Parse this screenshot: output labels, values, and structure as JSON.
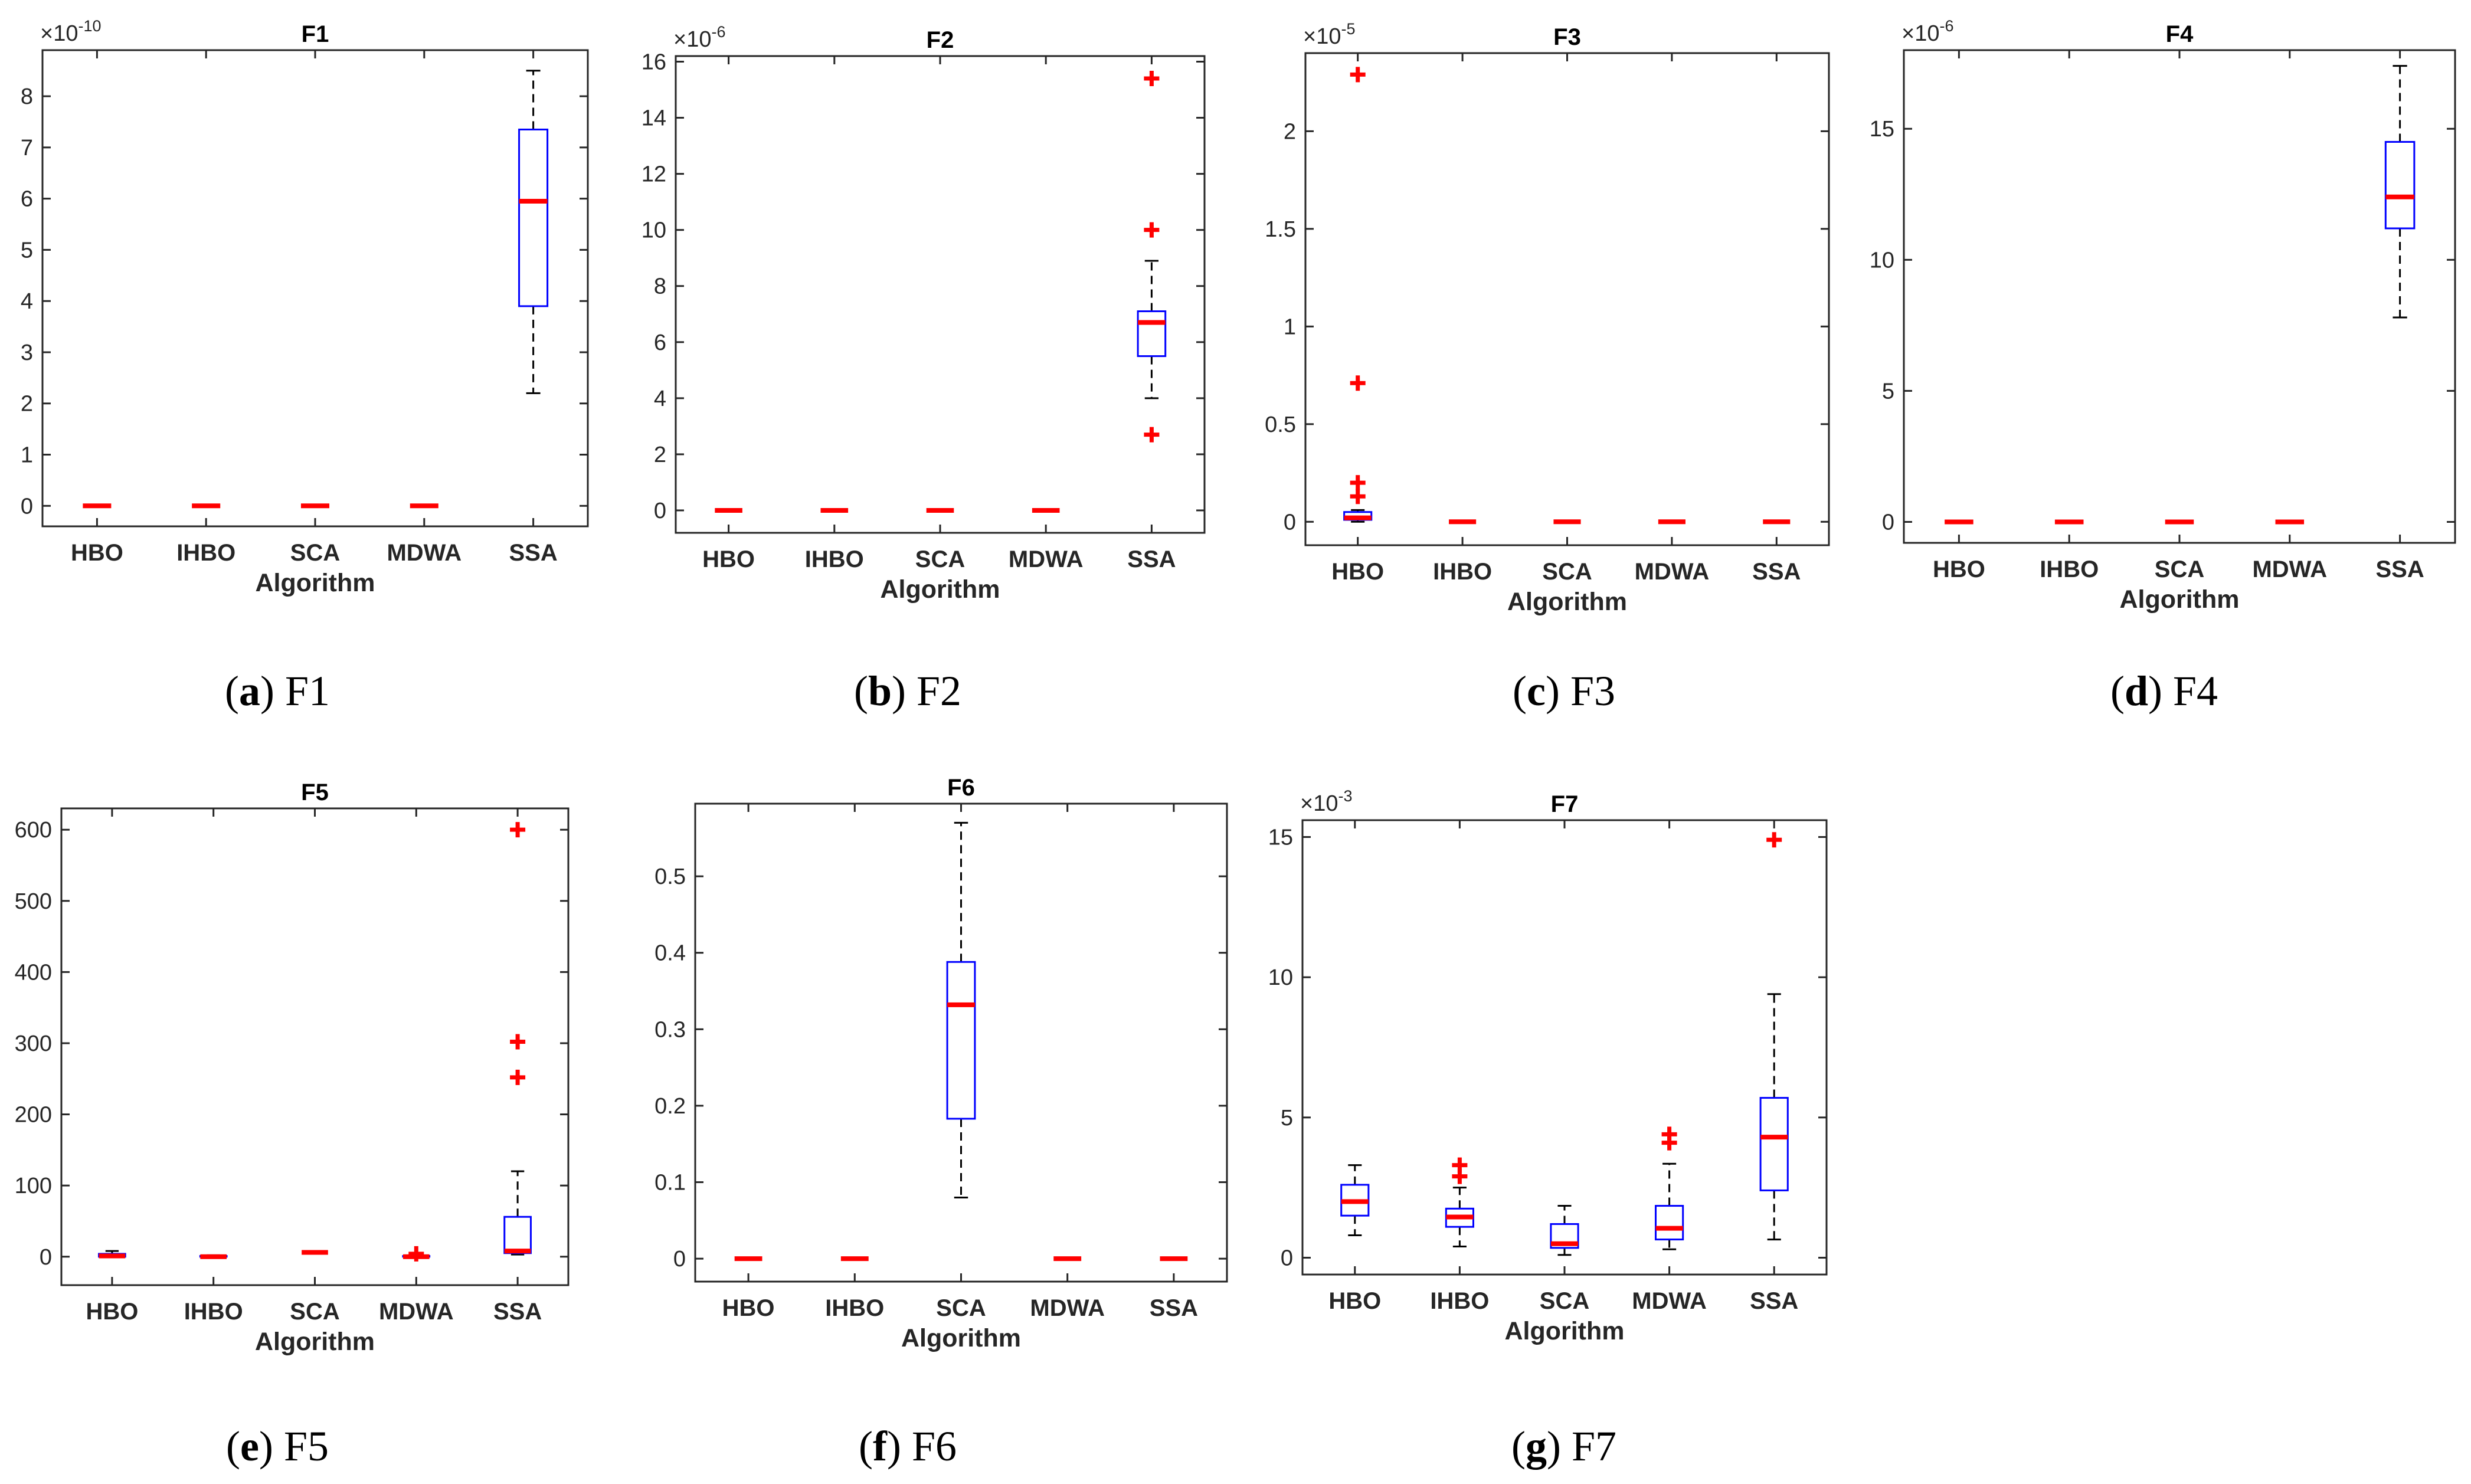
{
  "chart_data": [
    {
      "type": "boxplot",
      "title": "F1",
      "xlabel": "Algorithm",
      "ylabel": "",
      "exponent": "-10",
      "ylim": [
        -0.4,
        8.9
      ],
      "yticks": [
        "0",
        "1",
        "2",
        "3",
        "4",
        "5",
        "6",
        "7",
        "8"
      ],
      "ytick_values": [
        0,
        1,
        2,
        3,
        4,
        5,
        6,
        7,
        8
      ],
      "categories": [
        "HBO",
        "IHBO",
        "SCA",
        "MDWA",
        "SSA"
      ],
      "boxes": [
        {
          "min": 0,
          "q1": 0,
          "median": 0,
          "q3": 0,
          "max": 0,
          "outliers": []
        },
        {
          "min": 0,
          "q1": 0,
          "median": 0,
          "q3": 0,
          "max": 0,
          "outliers": []
        },
        {
          "min": 0,
          "q1": 0,
          "median": 0,
          "q3": 0,
          "max": 0,
          "outliers": []
        },
        {
          "min": 0,
          "q1": 0,
          "median": 0,
          "q3": 0,
          "max": 0,
          "outliers": []
        },
        {
          "min": 2.2,
          "q1": 3.9,
          "median": 5.95,
          "q3": 7.35,
          "max": 8.5,
          "outliers": []
        }
      ],
      "caption_letter": "a",
      "caption_text": " F1"
    },
    {
      "type": "boxplot",
      "title": "F2",
      "xlabel": "Algorithm",
      "ylabel": "",
      "exponent": "-6",
      "ylim": [
        -0.8,
        16.2
      ],
      "yticks": [
        "0",
        "2",
        "4",
        "6",
        "8",
        "10",
        "12",
        "14",
        "16"
      ],
      "ytick_values": [
        0,
        2,
        4,
        6,
        8,
        10,
        12,
        14,
        16
      ],
      "categories": [
        "HBO",
        "IHBO",
        "SCA",
        "MDWA",
        "SSA"
      ],
      "boxes": [
        {
          "min": 0,
          "q1": 0,
          "median": 0,
          "q3": 0,
          "max": 0,
          "outliers": []
        },
        {
          "min": 0,
          "q1": 0,
          "median": 0,
          "q3": 0,
          "max": 0,
          "outliers": []
        },
        {
          "min": 0,
          "q1": 0,
          "median": 0,
          "q3": 0,
          "max": 0,
          "outliers": []
        },
        {
          "min": 0,
          "q1": 0,
          "median": 0,
          "q3": 0,
          "max": 0,
          "outliers": []
        },
        {
          "min": 4.0,
          "q1": 5.5,
          "median": 6.7,
          "q3": 7.1,
          "max": 8.9,
          "outliers": [
            15.4,
            10.0,
            2.7
          ]
        }
      ],
      "caption_letter": "b",
      "caption_text": " F2"
    },
    {
      "type": "boxplot",
      "title": "F3",
      "xlabel": "Algorithm",
      "ylabel": "",
      "exponent": "-5",
      "ylim": [
        -0.12,
        2.4
      ],
      "yticks": [
        "0",
        "0.5",
        "1",
        "1.5",
        "2"
      ],
      "ytick_values": [
        0,
        0.5,
        1,
        1.5,
        2
      ],
      "categories": [
        "HBO",
        "IHBO",
        "SCA",
        "MDWA",
        "SSA"
      ],
      "boxes": [
        {
          "min": 0,
          "q1": 0.01,
          "median": 0.02,
          "q3": 0.05,
          "max": 0.06,
          "outliers": [
            2.29,
            0.71,
            0.2,
            0.13
          ]
        },
        {
          "min": 0,
          "q1": 0,
          "median": 0,
          "q3": 0,
          "max": 0,
          "outliers": []
        },
        {
          "min": 0,
          "q1": 0,
          "median": 0,
          "q3": 0,
          "max": 0,
          "outliers": []
        },
        {
          "min": 0,
          "q1": 0,
          "median": 0,
          "q3": 0,
          "max": 0,
          "outliers": []
        },
        {
          "min": 0,
          "q1": 0,
          "median": 0,
          "q3": 0,
          "max": 0,
          "outliers": []
        }
      ],
      "caption_letter": "c",
      "caption_text": " F3"
    },
    {
      "type": "boxplot",
      "title": "F4",
      "xlabel": "Algorithm",
      "ylabel": "",
      "exponent": "-6",
      "ylim": [
        -0.8,
        18.0
      ],
      "yticks": [
        "0",
        "5",
        "10",
        "15"
      ],
      "ytick_values": [
        0,
        5,
        10,
        15
      ],
      "categories": [
        "HBO",
        "IHBO",
        "SCA",
        "MDWA",
        "SSA"
      ],
      "boxes": [
        {
          "min": 0,
          "q1": 0,
          "median": 0,
          "q3": 0,
          "max": 0,
          "outliers": []
        },
        {
          "min": 0,
          "q1": 0,
          "median": 0,
          "q3": 0,
          "max": 0,
          "outliers": []
        },
        {
          "min": 0,
          "q1": 0,
          "median": 0,
          "q3": 0,
          "max": 0,
          "outliers": []
        },
        {
          "min": 0,
          "q1": 0,
          "median": 0,
          "q3": 0,
          "max": 0,
          "outliers": []
        },
        {
          "min": 7.8,
          "q1": 11.2,
          "median": 12.4,
          "q3": 14.5,
          "max": 17.4,
          "outliers": []
        }
      ],
      "caption_letter": "d",
      "caption_text": " F4"
    },
    {
      "type": "boxplot",
      "title": "F5",
      "xlabel": "Algorithm",
      "ylabel": "",
      "exponent": "",
      "ylim": [
        -40,
        630
      ],
      "yticks": [
        "0",
        "100",
        "200",
        "300",
        "400",
        "500",
        "600"
      ],
      "ytick_values": [
        0,
        100,
        200,
        300,
        400,
        500,
        600
      ],
      "categories": [
        "HBO",
        "IHBO",
        "SCA",
        "MDWA",
        "SSA"
      ],
      "boxes": [
        {
          "min": 0,
          "q1": 0,
          "median": 1,
          "q3": 4,
          "max": 8,
          "outliers": []
        },
        {
          "min": 0,
          "q1": 0,
          "median": 0,
          "q3": 1,
          "max": 2,
          "outliers": []
        },
        {
          "min": 6,
          "q1": 6,
          "median": 6,
          "q3": 6,
          "max": 6,
          "outliers": []
        },
        {
          "min": 0,
          "q1": 0,
          "median": 0,
          "q3": 1,
          "max": 2,
          "outliers": [
            4
          ]
        },
        {
          "min": 3,
          "q1": 5,
          "median": 8,
          "q3": 56,
          "max": 120,
          "outliers": [
            600,
            302,
            252
          ]
        }
      ],
      "caption_letter": "e",
      "caption_text": " F5"
    },
    {
      "type": "boxplot",
      "title": "F6",
      "xlabel": "Algorithm",
      "ylabel": "",
      "exponent": "",
      "ylim": [
        -0.03,
        0.595
      ],
      "yticks": [
        "0",
        "0.1",
        "0.2",
        "0.3",
        "0.4",
        "0.5"
      ],
      "ytick_values": [
        0,
        0.1,
        0.2,
        0.3,
        0.4,
        0.5
      ],
      "categories": [
        "HBO",
        "IHBO",
        "SCA",
        "MDWA",
        "SSA"
      ],
      "boxes": [
        {
          "min": 0,
          "q1": 0,
          "median": 0,
          "q3": 0,
          "max": 0,
          "outliers": []
        },
        {
          "min": 0,
          "q1": 0,
          "median": 0,
          "q3": 0,
          "max": 0,
          "outliers": []
        },
        {
          "min": 0.08,
          "q1": 0.183,
          "median": 0.332,
          "q3": 0.388,
          "max": 0.57,
          "outliers": []
        },
        {
          "min": 0,
          "q1": 0,
          "median": 0,
          "q3": 0,
          "max": 0,
          "outliers": []
        },
        {
          "min": 0,
          "q1": 0,
          "median": 0,
          "q3": 0,
          "max": 0,
          "outliers": []
        }
      ],
      "caption_letter": "f",
      "caption_text": " F6"
    },
    {
      "type": "boxplot",
      "title": "F7",
      "xlabel": "Algorithm",
      "ylabel": "",
      "exponent": "-3",
      "ylim": [
        -0.6,
        15.6
      ],
      "yticks": [
        "0",
        "5",
        "10",
        "15"
      ],
      "ytick_values": [
        0,
        5,
        10,
        15
      ],
      "categories": [
        "HBO",
        "IHBO",
        "SCA",
        "MDWA",
        "SSA"
      ],
      "boxes": [
        {
          "min": 0.8,
          "q1": 1.5,
          "median": 2.0,
          "q3": 2.6,
          "max": 3.3,
          "outliers": []
        },
        {
          "min": 0.4,
          "q1": 1.1,
          "median": 1.45,
          "q3": 1.75,
          "max": 2.5,
          "outliers": [
            3.3,
            2.9
          ]
        },
        {
          "min": 0.1,
          "q1": 0.35,
          "median": 0.5,
          "q3": 1.2,
          "max": 1.85,
          "outliers": []
        },
        {
          "min": 0.3,
          "q1": 0.65,
          "median": 1.05,
          "q3": 1.85,
          "max": 3.35,
          "outliers": [
            4.4,
            4.1
          ]
        },
        {
          "min": 0.65,
          "q1": 2.4,
          "median": 4.3,
          "q3": 5.7,
          "max": 9.4,
          "outliers": [
            14.9
          ]
        }
      ],
      "caption_letter": "g",
      "caption_text": " F7"
    }
  ]
}
